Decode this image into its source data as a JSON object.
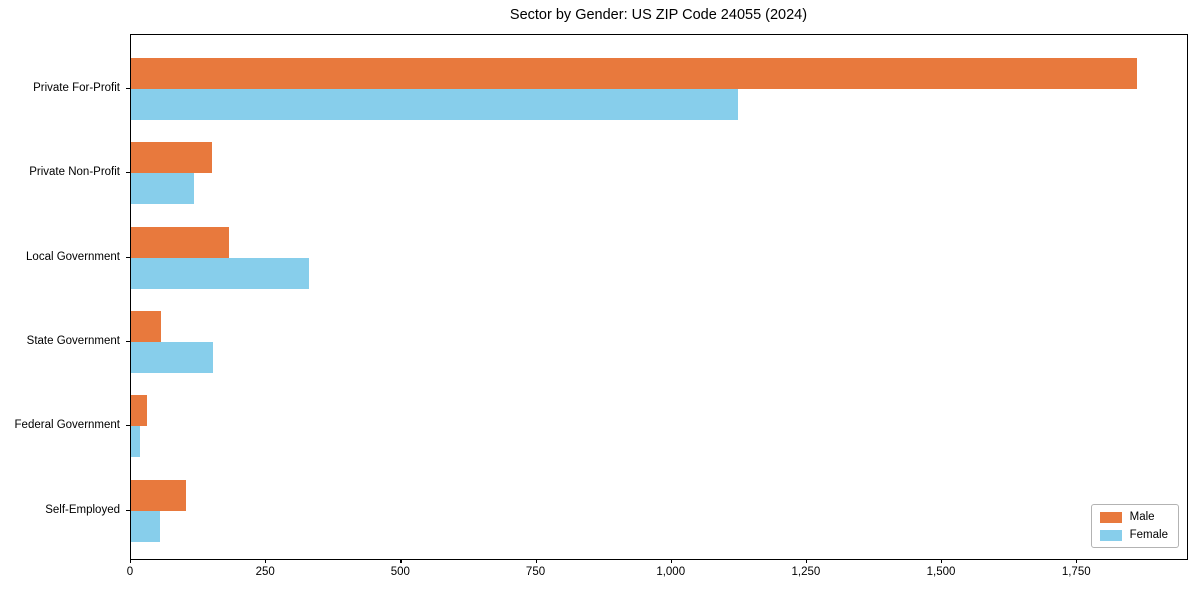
{
  "title": "Sector by Gender: US ZIP Code 24055 (2024)",
  "colors": {
    "male": "#e8793d",
    "female": "#87ceeb",
    "spine": "#000000",
    "legend_border": "#b3b3b3",
    "background": "#ffffff"
  },
  "legend": {
    "position": "lower right",
    "items": [
      {
        "label": "Male"
      },
      {
        "label": "Female"
      }
    ]
  },
  "chart_data": {
    "type": "bar",
    "orientation": "horizontal",
    "title": "Sector by Gender: US ZIP Code 24055 (2024)",
    "xlabel": "",
    "ylabel": "",
    "categories": [
      "Private For-Profit",
      "Private Non-Profit",
      "Local Government",
      "State Government",
      "Federal Government",
      "Self-Employed"
    ],
    "series": [
      {
        "name": "Male",
        "color": "#e8793d",
        "values": [
          1860,
          150,
          182,
          56,
          29,
          101
        ]
      },
      {
        "name": "Female",
        "color": "#87ceeb",
        "values": [
          1123,
          117,
          329,
          151,
          16,
          53
        ]
      }
    ],
    "xlim": [
      0,
      1953
    ],
    "x_ticks": [
      0,
      250,
      500,
      750,
      1000,
      1250,
      1500,
      1750
    ],
    "x_tick_labels": [
      "0",
      "250",
      "500",
      "750",
      "1,000",
      "1,250",
      "1,500",
      "1,750"
    ],
    "grid": false,
    "legend_position": "lower right"
  }
}
